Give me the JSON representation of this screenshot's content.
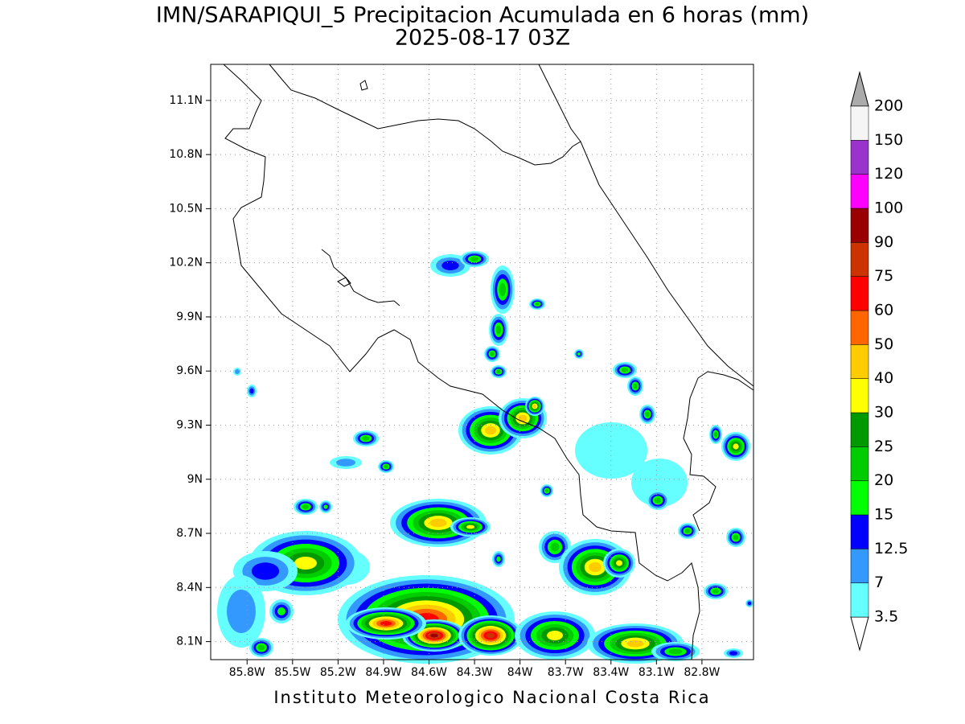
{
  "title": "IMN/SARAPIQUI_5 Precipitacion Acumulada en 6 horas (mm)",
  "subtitle": "2025-08-17 03Z",
  "footer": "Instituto Meteorologico Nacional Costa Rica",
  "map": {
    "lonlim": [
      -86.04,
      -82.46
    ],
    "latlim": [
      8.0,
      11.3
    ],
    "lonticks": [
      {
        "value": -85.8,
        "label": "85.8W"
      },
      {
        "value": -85.5,
        "label": "85.5W"
      },
      {
        "value": -85.2,
        "label": "85.2W"
      },
      {
        "value": -84.9,
        "label": "84.9W"
      },
      {
        "value": -84.6,
        "label": "84.6W"
      },
      {
        "value": -84.3,
        "label": "84.3W"
      },
      {
        "value": -84.0,
        "label": "84W"
      },
      {
        "value": -83.7,
        "label": "83.7W"
      },
      {
        "value": -83.4,
        "label": "83.4W"
      },
      {
        "value": -83.1,
        "label": "83.1W"
      },
      {
        "value": -82.8,
        "label": "82.8W"
      }
    ],
    "latticks": [
      {
        "value": 11.1,
        "label": "11.1N"
      },
      {
        "value": 10.8,
        "label": "10.8N"
      },
      {
        "value": 10.5,
        "label": "10.5N"
      },
      {
        "value": 10.2,
        "label": "10.2N"
      },
      {
        "value": 9.9,
        "label": "9.9N"
      },
      {
        "value": 9.6,
        "label": "9.6N"
      },
      {
        "value": 9.3,
        "label": "9.3N"
      },
      {
        "value": 9.0,
        "label": "9N"
      },
      {
        "value": 8.7,
        "label": "8.7N"
      },
      {
        "value": 8.4,
        "label": "8.4N"
      },
      {
        "value": 8.1,
        "label": "8.1N"
      }
    ],
    "grid": true
  },
  "colorbar": {
    "levels": [
      3.5,
      7,
      12.5,
      15,
      20,
      25,
      30,
      40,
      50,
      60,
      75,
      90,
      100,
      120,
      150,
      200
    ],
    "colors": [
      "#66ffff",
      "#3399ff",
      "#0000ff",
      "#00ff00",
      "#00cc00",
      "#009900",
      "#ffff00",
      "#ffcc00",
      "#ff6600",
      "#ff0000",
      "#cc3300",
      "#990000",
      "#ff00ff",
      "#9933cc",
      "#f5f5f5"
    ],
    "under_color": "#ffffff",
    "over_color": "#aaaaaa"
  }
}
